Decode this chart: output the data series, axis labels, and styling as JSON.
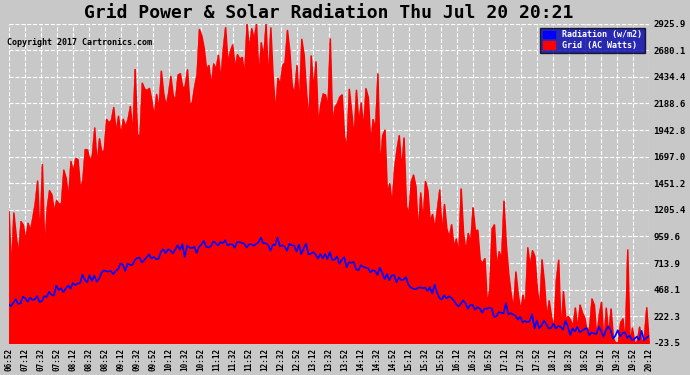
{
  "title": "Grid Power & Solar Radiation Thu Jul 20 20:21",
  "copyright": "Copyright 2017 Cartronics.com",
  "legend_labels": [
    "Radiation (w/m2)",
    "Grid (AC Watts)"
  ],
  "legend_colors": [
    "#0000ff",
    "#ff0000"
  ],
  "yticks": [
    -23.5,
    222.3,
    468.1,
    713.9,
    959.6,
    1205.4,
    1451.2,
    1697.0,
    1942.8,
    2188.6,
    2434.4,
    2680.1,
    2925.9
  ],
  "ymin": -23.5,
  "ymax": 2925.9,
  "bg_color": "#c8c8c8",
  "plot_bg_color": "#c8c8c8",
  "grid_color": "#ffffff",
  "fill_color": "#ff0000",
  "line_color": "#0000ff",
  "title_fontsize": 13,
  "num_points": 270
}
